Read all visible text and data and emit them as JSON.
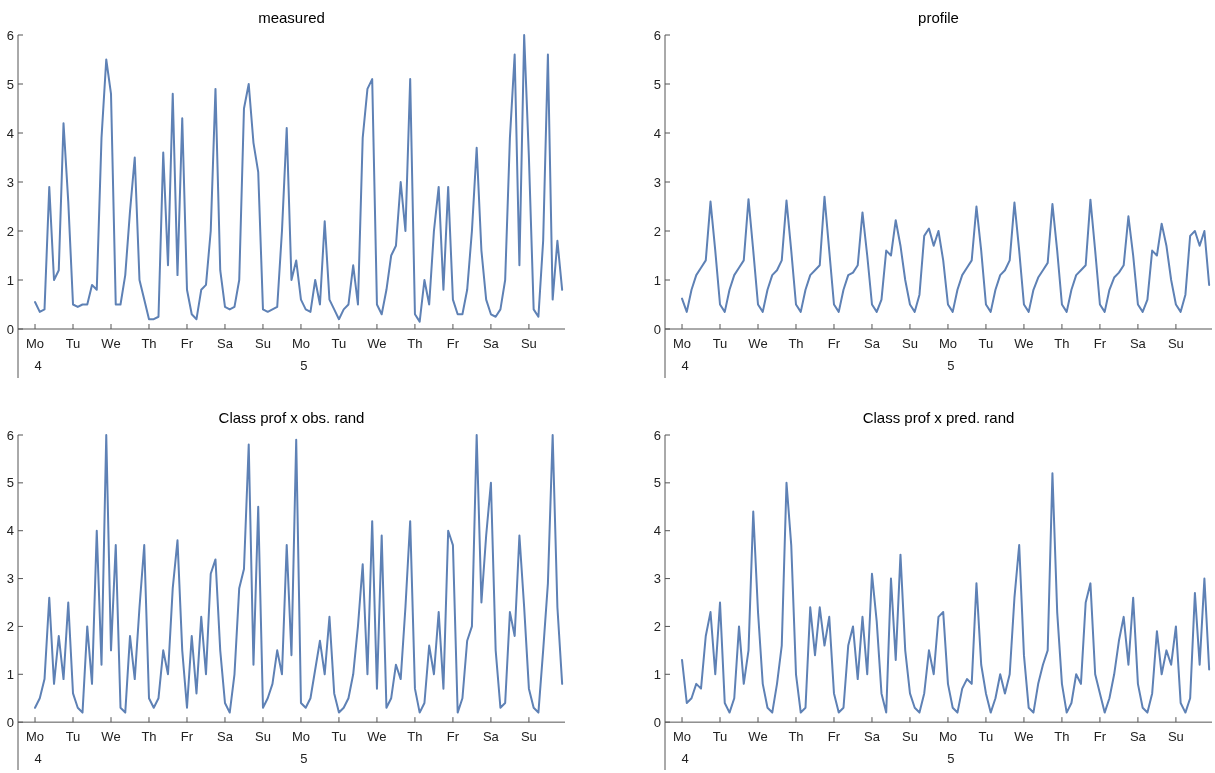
{
  "chart_data": [
    {
      "type": "line",
      "title": "measured",
      "color": "#5e81b5",
      "ylim": [
        -1,
        6
      ],
      "yticks": [
        0,
        1,
        2,
        3,
        4,
        5,
        6
      ],
      "categories": [
        "Mo\n4",
        null,
        null,
        null,
        null,
        null,
        null,
        null,
        "Tu",
        null,
        null,
        null,
        null,
        null,
        null,
        null,
        "We",
        null,
        null,
        null,
        null,
        null,
        null,
        null,
        "Th",
        null,
        null,
        null,
        null,
        null,
        null,
        null,
        "Fr",
        null,
        null,
        null,
        null,
        null,
        null,
        null,
        "Sa",
        null,
        null,
        null,
        null,
        null,
        null,
        null,
        "Su",
        null,
        null,
        null,
        null,
        null,
        null,
        null,
        "Mo\n5",
        null,
        null,
        null,
        null,
        null,
        null,
        null,
        "Tu",
        null,
        null,
        null,
        null,
        null,
        null,
        null,
        "We",
        null,
        null,
        null,
        null,
        null,
        null,
        null,
        "Th",
        null,
        null,
        null,
        null,
        null,
        null,
        null,
        "Fr",
        null,
        null,
        null,
        null,
        null,
        null,
        null,
        "Sa",
        null,
        null,
        null,
        null,
        null,
        null,
        null,
        "Su",
        null,
        null,
        null,
        null,
        null,
        null,
        null
      ],
      "values": [
        0.55,
        0.35,
        0.4,
        2.9,
        1.0,
        1.2,
        4.2,
        2.6,
        0.5,
        0.45,
        0.5,
        0.5,
        0.9,
        0.8,
        3.9,
        5.5,
        4.8,
        0.5,
        0.5,
        1.1,
        2.4,
        3.5,
        1.0,
        0.6,
        0.2,
        0.2,
        0.25,
        3.6,
        1.3,
        4.8,
        1.1,
        4.3,
        0.8,
        0.3,
        0.2,
        0.8,
        0.9,
        2.0,
        4.9,
        1.2,
        0.45,
        0.4,
        0.45,
        1.0,
        4.5,
        5.0,
        3.8,
        3.2,
        0.4,
        0.35,
        0.4,
        0.45,
        2.0,
        4.1,
        1.0,
        1.4,
        0.6,
        0.4,
        0.35,
        1.0,
        0.5,
        2.2,
        0.6,
        0.4,
        0.2,
        0.4,
        0.5,
        1.3,
        0.5,
        3.9,
        4.9,
        5.1,
        0.5,
        0.3,
        0.8,
        1.5,
        1.7,
        3.0,
        2.0,
        5.1,
        0.3,
        0.15,
        1.0,
        0.5,
        2.0,
        2.9,
        0.8,
        2.9,
        0.6,
        0.3,
        0.3,
        0.8,
        2.0,
        3.7,
        1.6,
        0.6,
        0.3,
        0.25,
        0.4,
        1.0,
        3.9,
        5.6,
        1.3,
        6.0,
        3.5,
        0.4,
        0.25,
        1.8,
        5.6,
        0.6,
        1.8,
        0.8
      ]
    },
    {
      "type": "line",
      "title": "profile",
      "color": "#5e81b5",
      "ylim": [
        -1,
        6
      ],
      "yticks": [
        0,
        1,
        2,
        3,
        4,
        5,
        6
      ],
      "categories": [
        "Mo\n4",
        null,
        null,
        null,
        null,
        null,
        null,
        null,
        "Tu",
        null,
        null,
        null,
        null,
        null,
        null,
        null,
        "We",
        null,
        null,
        null,
        null,
        null,
        null,
        null,
        "Th",
        null,
        null,
        null,
        null,
        null,
        null,
        null,
        "Fr",
        null,
        null,
        null,
        null,
        null,
        null,
        null,
        "Sa",
        null,
        null,
        null,
        null,
        null,
        null,
        null,
        "Su",
        null,
        null,
        null,
        null,
        null,
        null,
        null,
        "Mo\n5",
        null,
        null,
        null,
        null,
        null,
        null,
        null,
        "Tu",
        null,
        null,
        null,
        null,
        null,
        null,
        null,
        "We",
        null,
        null,
        null,
        null,
        null,
        null,
        null,
        "Th",
        null,
        null,
        null,
        null,
        null,
        null,
        null,
        "Fr",
        null,
        null,
        null,
        null,
        null,
        null,
        null,
        "Sa",
        null,
        null,
        null,
        null,
        null,
        null,
        null,
        "Su",
        null,
        null,
        null,
        null,
        null,
        null,
        null
      ],
      "values": [
        0.62,
        0.35,
        0.8,
        1.1,
        1.25,
        1.4,
        2.6,
        1.6,
        0.5,
        0.35,
        0.8,
        1.1,
        1.25,
        1.4,
        2.65,
        1.6,
        0.5,
        0.35,
        0.8,
        1.1,
        1.2,
        1.4,
        2.62,
        1.6,
        0.5,
        0.35,
        0.8,
        1.1,
        1.2,
        1.3,
        2.7,
        1.6,
        0.5,
        0.35,
        0.8,
        1.1,
        1.15,
        1.3,
        2.38,
        1.5,
        0.5,
        0.35,
        0.6,
        1.6,
        1.5,
        2.22,
        1.7,
        1.0,
        0.5,
        0.35,
        0.7,
        1.9,
        2.05,
        1.7,
        2.0,
        1.4,
        0.5,
        0.35,
        0.8,
        1.1,
        1.25,
        1.4,
        2.5,
        1.6,
        0.5,
        0.35,
        0.8,
        1.1,
        1.2,
        1.4,
        2.58,
        1.6,
        0.5,
        0.35,
        0.8,
        1.05,
        1.2,
        1.35,
        2.55,
        1.6,
        0.5,
        0.35,
        0.8,
        1.1,
        1.2,
        1.3,
        2.64,
        1.6,
        0.5,
        0.35,
        0.8,
        1.05,
        1.15,
        1.3,
        2.3,
        1.5,
        0.5,
        0.35,
        0.6,
        1.6,
        1.5,
        2.15,
        1.7,
        1.0,
        0.5,
        0.35,
        0.7,
        1.9,
        2.0,
        1.7,
        2.0,
        0.9
      ]
    },
    {
      "type": "line",
      "title": "Class prof x obs. rand",
      "color": "#5e81b5",
      "ylim": [
        -1,
        6
      ],
      "yticks": [
        0,
        1,
        2,
        3,
        4,
        5,
        6
      ],
      "categories": [
        "Mo\n4",
        null,
        null,
        null,
        null,
        null,
        null,
        null,
        "Tu",
        null,
        null,
        null,
        null,
        null,
        null,
        null,
        "We",
        null,
        null,
        null,
        null,
        null,
        null,
        null,
        "Th",
        null,
        null,
        null,
        null,
        null,
        null,
        null,
        "Fr",
        null,
        null,
        null,
        null,
        null,
        null,
        null,
        "Sa",
        null,
        null,
        null,
        null,
        null,
        null,
        null,
        "Su",
        null,
        null,
        null,
        null,
        null,
        null,
        null,
        "Mo\n5",
        null,
        null,
        null,
        null,
        null,
        null,
        null,
        "Tu",
        null,
        null,
        null,
        null,
        null,
        null,
        null,
        "We",
        null,
        null,
        null,
        null,
        null,
        null,
        null,
        "Th",
        null,
        null,
        null,
        null,
        null,
        null,
        null,
        "Fr",
        null,
        null,
        null,
        null,
        null,
        null,
        null,
        "Sa",
        null,
        null,
        null,
        null,
        null,
        null,
        null,
        "Su",
        null,
        null,
        null,
        null,
        null,
        null,
        null
      ],
      "values": [
        0.3,
        0.5,
        0.9,
        2.6,
        0.8,
        1.8,
        0.9,
        2.5,
        0.6,
        0.3,
        0.2,
        2.0,
        0.8,
        4.0,
        1.2,
        6.0,
        1.5,
        3.7,
        0.3,
        0.2,
        1.8,
        0.9,
        2.4,
        3.7,
        0.5,
        0.3,
        0.5,
        1.5,
        1.0,
        2.8,
        3.8,
        1.5,
        0.3,
        1.8,
        0.6,
        2.2,
        1.0,
        3.1,
        3.4,
        1.5,
        0.4,
        0.2,
        1.0,
        2.8,
        3.2,
        5.8,
        1.2,
        4.5,
        0.3,
        0.5,
        0.8,
        1.5,
        1.0,
        3.7,
        1.4,
        5.9,
        0.4,
        0.3,
        0.5,
        1.1,
        1.7,
        1.0,
        2.2,
        0.6,
        0.2,
        0.3,
        0.5,
        1.0,
        2.0,
        3.3,
        1.0,
        4.2,
        0.7,
        3.9,
        0.3,
        0.5,
        1.2,
        0.9,
        2.4,
        4.2,
        0.7,
        0.2,
        0.4,
        1.6,
        1.0,
        2.3,
        0.7,
        4.0,
        3.7,
        0.2,
        0.5,
        1.7,
        2.0,
        6.0,
        2.5,
        3.9,
        5.0,
        1.5,
        0.3,
        0.4,
        2.3,
        1.8,
        3.9,
        2.4,
        0.7,
        0.3,
        0.2,
        1.5,
        2.9,
        6.0,
        2.4,
        0.8
      ]
    },
    {
      "type": "line",
      "title": "Class prof x pred. rand",
      "color": "#5e81b5",
      "ylim": [
        -1,
        6
      ],
      "yticks": [
        0,
        1,
        2,
        3,
        4,
        5,
        6
      ],
      "categories": [
        "Mo\n4",
        null,
        null,
        null,
        null,
        null,
        null,
        null,
        "Tu",
        null,
        null,
        null,
        null,
        null,
        null,
        null,
        "We",
        null,
        null,
        null,
        null,
        null,
        null,
        null,
        "Th",
        null,
        null,
        null,
        null,
        null,
        null,
        null,
        "Fr",
        null,
        null,
        null,
        null,
        null,
        null,
        null,
        "Sa",
        null,
        null,
        null,
        null,
        null,
        null,
        null,
        "Su",
        null,
        null,
        null,
        null,
        null,
        null,
        null,
        "Mo\n5",
        null,
        null,
        null,
        null,
        null,
        null,
        null,
        "Tu",
        null,
        null,
        null,
        null,
        null,
        null,
        null,
        "We",
        null,
        null,
        null,
        null,
        null,
        null,
        null,
        "Th",
        null,
        null,
        null,
        null,
        null,
        null,
        null,
        "Fr",
        null,
        null,
        null,
        null,
        null,
        null,
        null,
        "Sa",
        null,
        null,
        null,
        null,
        null,
        null,
        null,
        "Su",
        null,
        null,
        null,
        null,
        null,
        null,
        null
      ],
      "values": [
        1.3,
        0.4,
        0.5,
        0.8,
        0.7,
        1.8,
        2.3,
        1.0,
        2.5,
        0.4,
        0.2,
        0.5,
        2.0,
        0.8,
        1.5,
        4.4,
        2.3,
        0.8,
        0.3,
        0.2,
        0.8,
        1.6,
        5.0,
        3.7,
        1.0,
        0.2,
        0.3,
        2.4,
        1.4,
        2.4,
        1.6,
        2.2,
        0.6,
        0.2,
        0.3,
        1.6,
        2.0,
        0.9,
        2.2,
        1.0,
        3.1,
        2.1,
        0.6,
        0.2,
        3.0,
        1.3,
        3.5,
        1.5,
        0.6,
        0.3,
        0.2,
        0.6,
        1.5,
        1.0,
        2.2,
        2.3,
        0.8,
        0.3,
        0.2,
        0.7,
        0.9,
        0.8,
        2.9,
        1.2,
        0.6,
        0.2,
        0.5,
        1.0,
        0.6,
        1.0,
        2.6,
        3.7,
        1.4,
        0.3,
        0.2,
        0.8,
        1.2,
        1.5,
        5.2,
        2.3,
        0.8,
        0.2,
        0.4,
        1.0,
        0.8,
        2.5,
        2.9,
        1.0,
        0.6,
        0.2,
        0.5,
        1.0,
        1.7,
        2.2,
        1.2,
        2.6,
        0.8,
        0.3,
        0.2,
        0.6,
        1.9,
        1.0,
        1.5,
        1.2,
        2.0,
        0.4,
        0.2,
        0.5,
        2.7,
        1.2,
        3.0,
        1.1
      ]
    }
  ]
}
